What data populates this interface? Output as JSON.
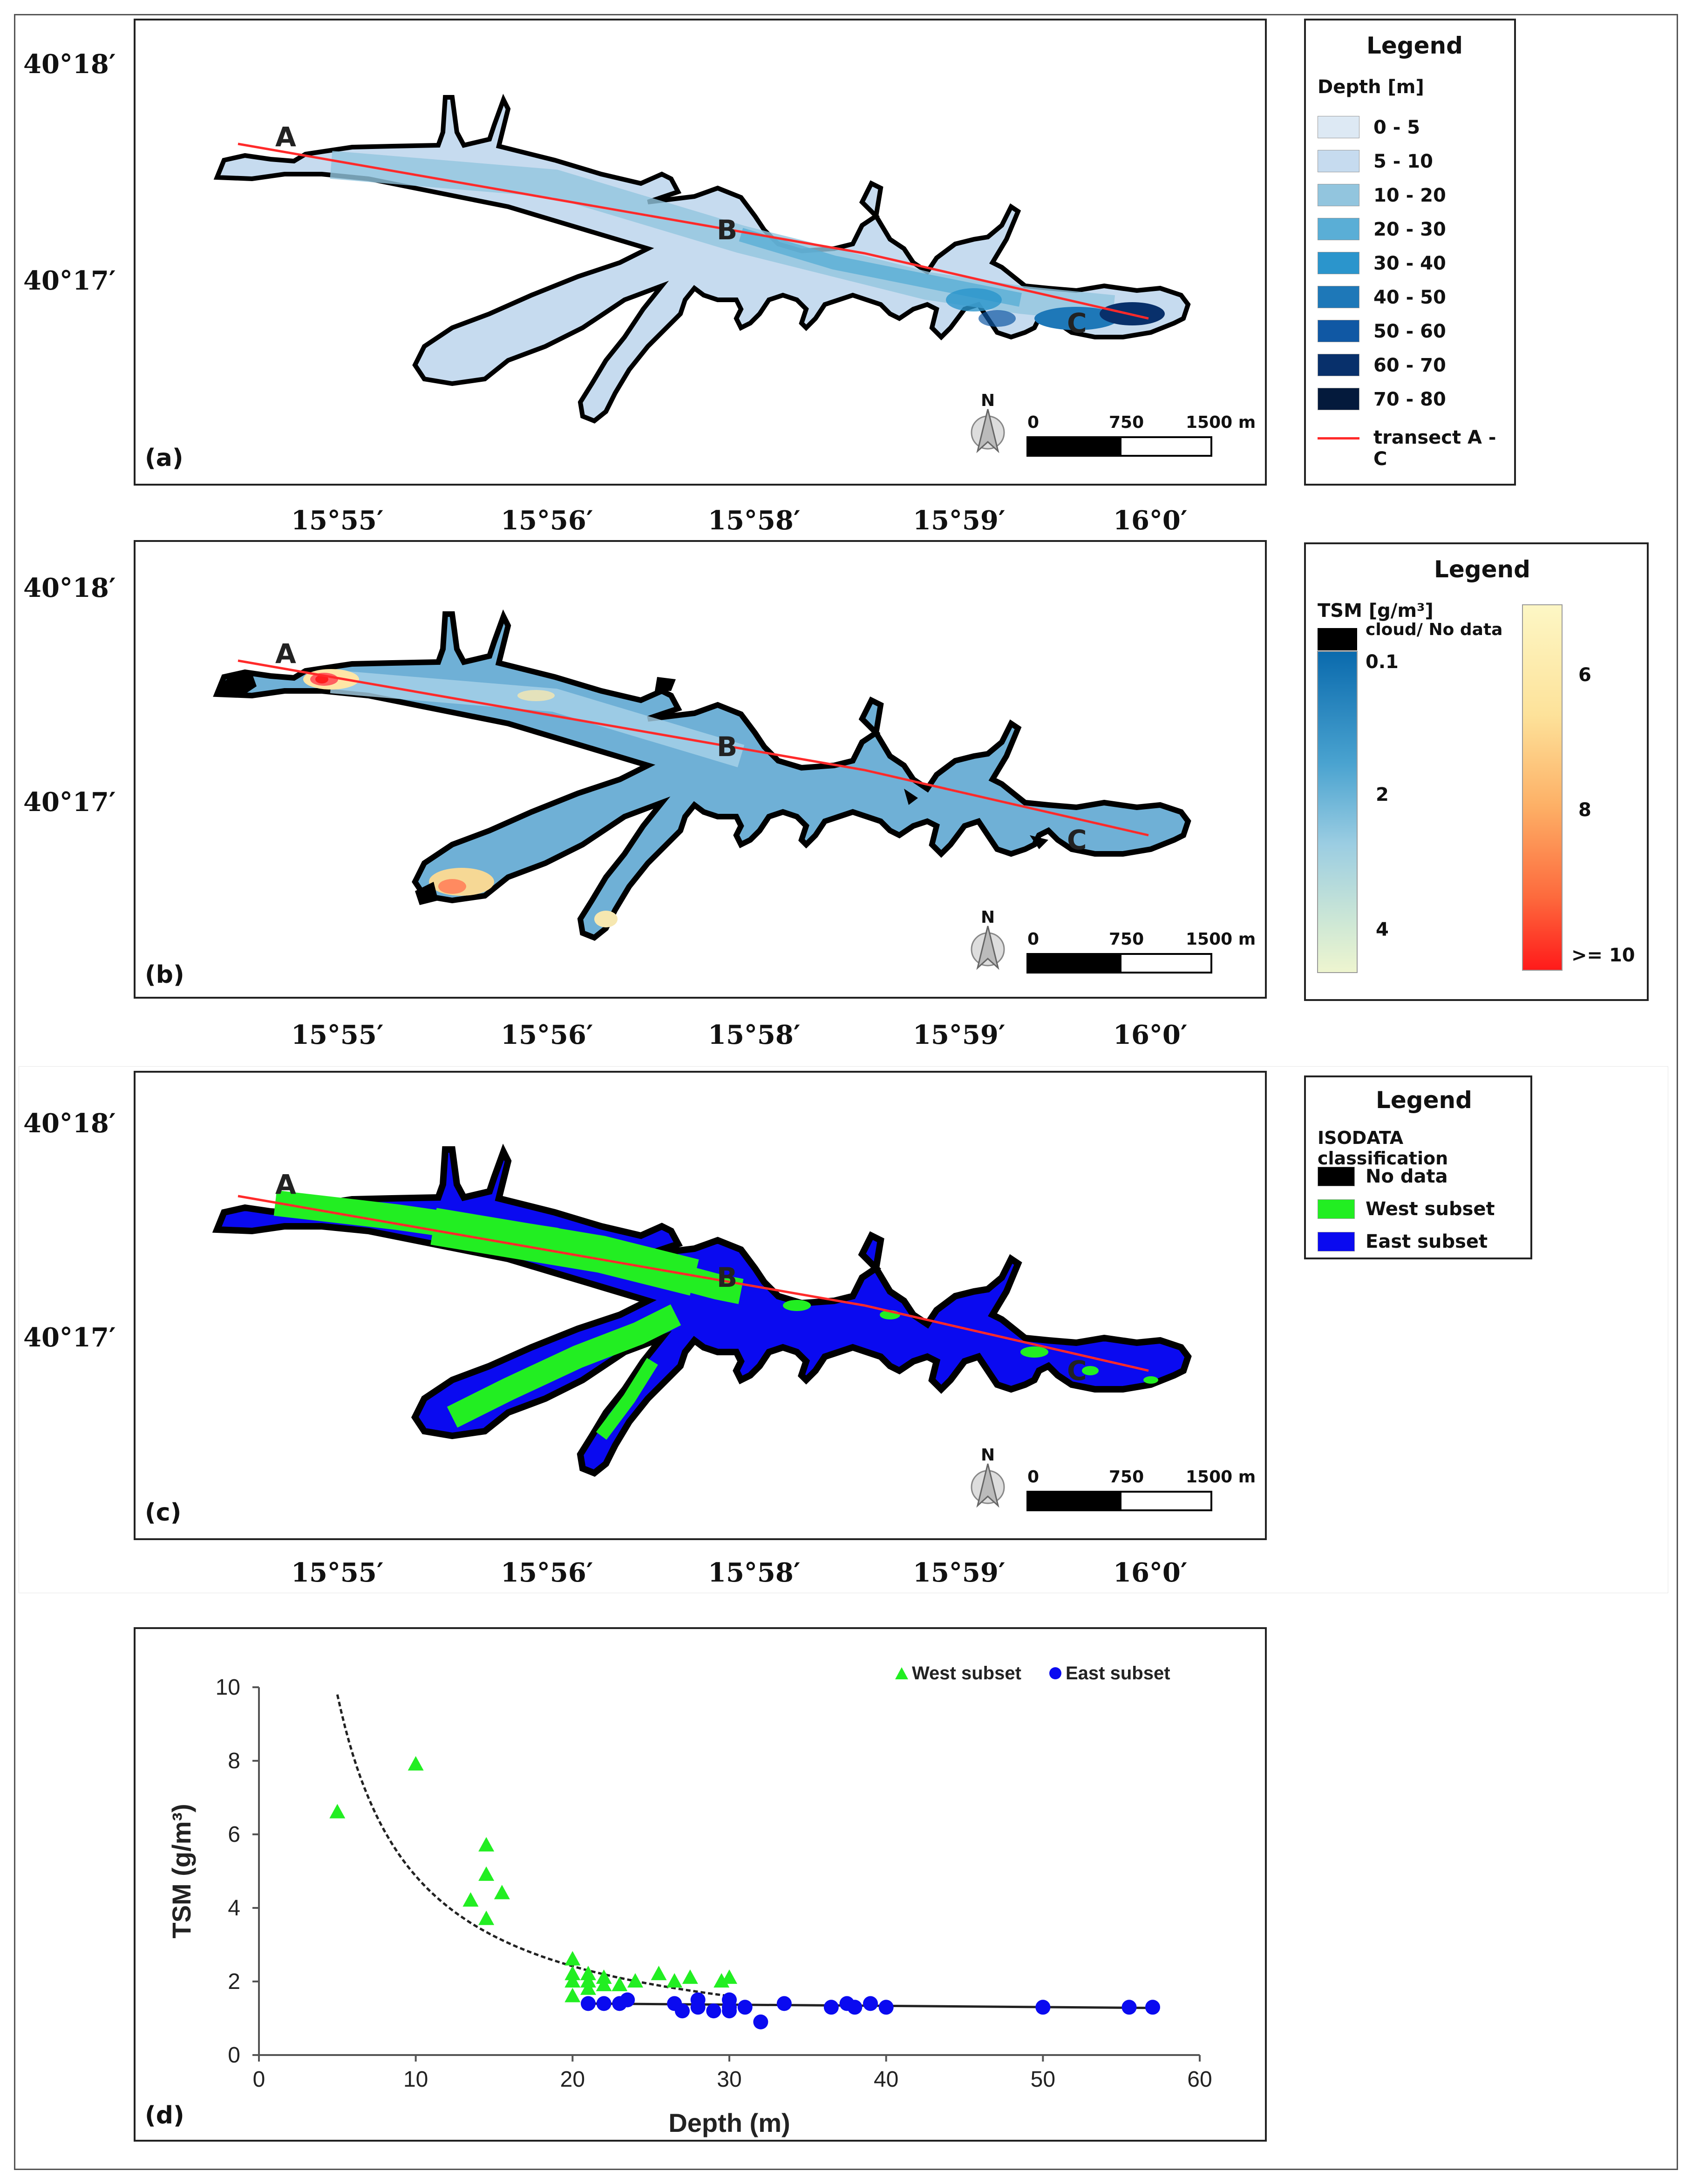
{
  "lat_labels": [
    "40°18′",
    "40°17′"
  ],
  "lon_labels": [
    "15°55′",
    "15°56′",
    "15°58′",
    "15°59′",
    "16°0′"
  ],
  "point_labels": [
    "A",
    "B",
    "C"
  ],
  "scalebar": {
    "zero": "0",
    "mid": "750",
    "end": "1500 m",
    "north": "N"
  },
  "panel_a": {
    "label": "(a)",
    "legend_title": "Legend",
    "legend_subtitle": "Depth [m]",
    "classes": [
      {
        "label": "0 - 5",
        "color": "#dde9f4"
      },
      {
        "label": "5 - 10",
        "color": "#c6dbef"
      },
      {
        "label": "10 - 20",
        "color": "#92c5de"
      },
      {
        "label": "20 - 30",
        "color": "#5aaed6"
      },
      {
        "label": "30 - 40",
        "color": "#2b95cc"
      },
      {
        "label": "40 - 50",
        "color": "#1e78b8"
      },
      {
        "label": "50 - 60",
        "color": "#1058a4"
      },
      {
        "label": "60 - 70",
        "color": "#08306b"
      },
      {
        "label": "70 - 80",
        "color": "#041a3c"
      }
    ],
    "transect_label": "transect A - C",
    "transect_color": "#ff2a2a"
  },
  "panel_b": {
    "label": "(b)",
    "legend_title": "Legend",
    "legend_subtitle": "TSM [g/m³]",
    "nodata_label": "cloud/ No data",
    "ramp_left_labels": [
      "0.1",
      "2",
      "4"
    ],
    "ramp_right_labels": [
      "6",
      "8",
      ">= 10"
    ]
  },
  "panel_c": {
    "label": "(c)",
    "legend_title": "Legend",
    "legend_subtitle": "ISODATA classification",
    "classes": [
      {
        "label": "No data",
        "color": "#000000"
      },
      {
        "label": "West subset",
        "color": "#22ee22"
      },
      {
        "label": "East subset",
        "color": "#0a0af0"
      }
    ]
  },
  "panel_d": {
    "label": "(d)",
    "chart_data": {
      "type": "scatter",
      "xlabel": "Depth (m)",
      "ylabel": "TSM (g/m³)",
      "xlim": [
        0,
        60
      ],
      "ylim": [
        0,
        10
      ],
      "xticks": [
        0,
        10,
        20,
        30,
        40,
        50,
        60
      ],
      "yticks": [
        0,
        2,
        4,
        6,
        8,
        10
      ],
      "legend_position": "top-right",
      "series": [
        {
          "name": "West subset",
          "marker": "triangle",
          "color": "#22ee22",
          "points": [
            [
              5,
              6.6
            ],
            [
              10,
              7.9
            ],
            [
              13.5,
              4.2
            ],
            [
              14.5,
              3.7
            ],
            [
              14.5,
              5.7
            ],
            [
              14.5,
              4.9
            ],
            [
              15.5,
              4.4
            ],
            [
              20,
              2.6
            ],
            [
              20,
              2.2
            ],
            [
              20,
              2.0
            ],
            [
              20,
              1.6
            ],
            [
              21,
              2.2
            ],
            [
              21,
              2.0
            ],
            [
              21,
              1.8
            ],
            [
              22,
              2.1
            ],
            [
              22,
              1.9
            ],
            [
              23,
              1.9
            ],
            [
              24,
              2.0
            ],
            [
              25.5,
              2.2
            ],
            [
              26.5,
              2.0
            ],
            [
              27.5,
              2.1
            ],
            [
              29.5,
              2.0
            ],
            [
              30,
              2.1
            ]
          ]
        },
        {
          "name": "East subset",
          "marker": "circle",
          "color": "#0a0af0",
          "points": [
            [
              21,
              1.4
            ],
            [
              22,
              1.4
            ],
            [
              23,
              1.4
            ],
            [
              23.5,
              1.5
            ],
            [
              26.5,
              1.4
            ],
            [
              27,
              1.2
            ],
            [
              28,
              1.3
            ],
            [
              28,
              1.5
            ],
            [
              29,
              1.2
            ],
            [
              30,
              1.5
            ],
            [
              30,
              1.3
            ],
            [
              30,
              1.2
            ],
            [
              31,
              1.3
            ],
            [
              32,
              0.9
            ],
            [
              33.5,
              1.4
            ],
            [
              36.5,
              1.3
            ],
            [
              37.5,
              1.4
            ],
            [
              38,
              1.3
            ],
            [
              39,
              1.4
            ],
            [
              40,
              1.3
            ],
            [
              50,
              1.3
            ],
            [
              55.5,
              1.3
            ],
            [
              57,
              1.3
            ]
          ]
        }
      ],
      "fit_curve_west": {
        "style": "dashed",
        "x_range": [
          5,
          30
        ],
        "a": 49.8,
        "b": -1.01
      },
      "fit_line_east": {
        "style": "solid",
        "x_range": [
          21,
          57
        ],
        "y_start": 1.4,
        "y_end": 1.28
      }
    }
  }
}
